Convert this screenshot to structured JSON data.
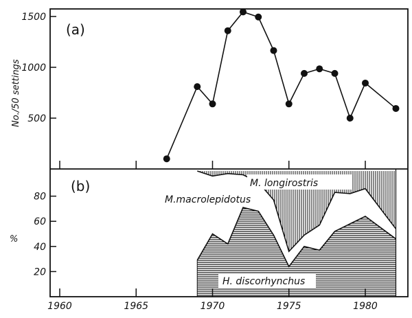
{
  "chart_data": [
    {
      "type": "line",
      "panel_label": "(a)",
      "ylabel": "No./50 settings",
      "xlabel": "",
      "yticks": [
        500,
        1000,
        1500
      ],
      "ylim": [
        0,
        1600
      ],
      "xlim": [
        1959.3,
        1983
      ],
      "x": [
        1967,
        1969,
        1970,
        1971,
        1972,
        1973,
        1974,
        1975,
        1976,
        1977,
        1978,
        1979,
        1980,
        1982
      ],
      "values": [
        100,
        810,
        640,
        1360,
        1545,
        1495,
        1165,
        640,
        940,
        985,
        940,
        500,
        845,
        595
      ],
      "markers": "filled-circle",
      "grid": false
    },
    {
      "type": "area",
      "panel_label": "(b)",
      "ylabel": "%",
      "xlabel": "",
      "yticks": [
        20,
        40,
        60,
        80
      ],
      "ylim": [
        0,
        100
      ],
      "xticks": [
        "1960",
        "1965",
        "1970",
        "1975",
        "1980"
      ],
      "xtick_values": [
        1960,
        1965,
        1970,
        1975,
        1980
      ],
      "x": [
        1969,
        1970,
        1971,
        1972,
        1973,
        1974,
        1975,
        1976,
        1977,
        1978,
        1979,
        1980,
        1982
      ],
      "series": [
        {
          "name": "H. discorhynchus",
          "pattern": "horizontal-hatch",
          "cumulative_top": [
            29,
            50,
            42,
            71,
            68,
            49,
            24,
            40,
            37,
            52,
            58,
            64,
            46
          ]
        },
        {
          "name": "M.macrolepidotus",
          "pattern": "white",
          "cumulative_top": [
            100,
            96,
            98,
            97,
            91,
            77,
            36,
            49,
            57,
            83,
            82,
            86,
            54
          ]
        },
        {
          "name": "M. longirostris",
          "pattern": "vertical-hatch",
          "cumulative_top": [
            100,
            100,
            100,
            100,
            100,
            100,
            100,
            100,
            100,
            100,
            100,
            100,
            100
          ]
        }
      ],
      "grid": false
    }
  ]
}
